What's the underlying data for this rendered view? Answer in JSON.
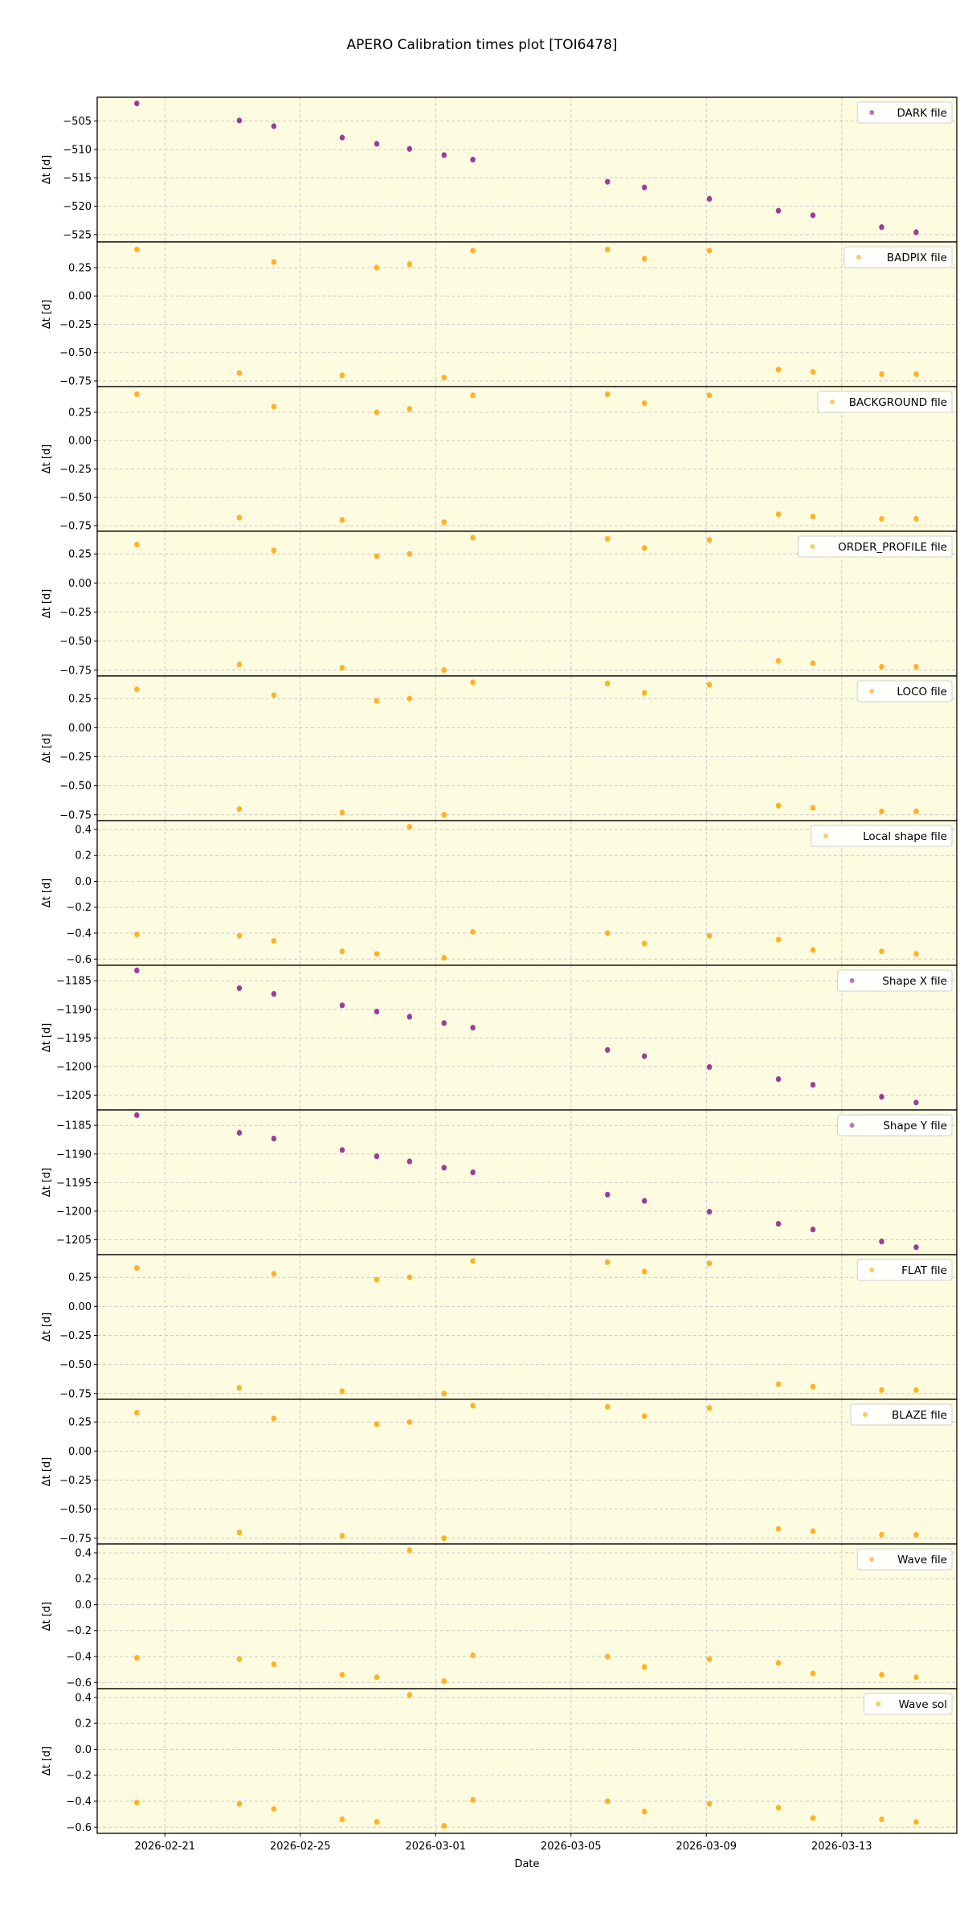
{
  "chart_data": {
    "type": "scatter",
    "title": "APERO Calibration times plot [TOI6478]",
    "xlabel": "Date",
    "ylabel": "Δt [d]",
    "x_tick_labels": [
      "2026-02-21",
      "2026-02-25",
      "2026-03-01",
      "2026-03-05",
      "2026-03-09",
      "2026-03-13"
    ],
    "x_tick_days": [
      0,
      4,
      8,
      12,
      16,
      20
    ],
    "x_reference_date": "2026-02-21",
    "xlim_days": [
      -2.0,
      23.4
    ],
    "grid": true,
    "legend_position": "upper right",
    "colors": {
      "purple": "#8b1a8b",
      "orange": "#ffa500",
      "panel_bg": "#fdfbe0",
      "grid": "#cccccc"
    },
    "x_days": [
      -0.83,
      2.2,
      3.22,
      5.24,
      6.26,
      7.23,
      8.25,
      9.1,
      13.08,
      14.17,
      16.09,
      18.13,
      19.15,
      21.18,
      22.2
    ],
    "panels": [
      {
        "legend": "DARK file",
        "color": "#8b1a8b",
        "ylim": [
          -526.3,
          -500.8
        ],
        "yticks": [
          -505,
          -510,
          -515,
          -520,
          -525
        ],
        "ytick_labels": [
          "−505",
          "−510",
          "−515",
          "−520",
          "−525"
        ],
        "values": [
          -501.9,
          -504.9,
          -505.9,
          -507.9,
          -509.0,
          -509.9,
          -511.0,
          -511.8,
          -515.7,
          -516.7,
          -518.7,
          -520.8,
          -521.6,
          -523.7,
          -524.6
        ]
      },
      {
        "legend": "BADPIX file",
        "color": "#ffa500",
        "ylim": [
          -0.8,
          0.477
        ],
        "yticks": [
          0.25,
          0.0,
          -0.25,
          -0.5,
          -0.75
        ],
        "ytick_labels": [
          "0.25",
          "0.00",
          "−0.25",
          "−0.50",
          "−0.75"
        ],
        "values": [
          0.41,
          -0.68,
          0.3,
          -0.7,
          0.25,
          0.28,
          -0.72,
          0.4,
          0.41,
          0.33,
          0.4,
          -0.65,
          -0.67,
          -0.69,
          -0.69
        ]
      },
      {
        "legend": "BACKGROUND file",
        "color": "#ffa500",
        "ylim": [
          -0.8,
          0.477
        ],
        "yticks": [
          0.25,
          0.0,
          -0.25,
          -0.5,
          -0.75
        ],
        "ytick_labels": [
          "0.25",
          "0.00",
          "−0.25",
          "−0.50",
          "−0.75"
        ],
        "values": [
          0.41,
          -0.68,
          0.3,
          -0.7,
          0.25,
          0.28,
          -0.72,
          0.4,
          0.41,
          0.33,
          0.4,
          -0.65,
          -0.67,
          -0.69,
          -0.69
        ]
      },
      {
        "legend": "ORDER_PROFILE file",
        "color": "#ffa500",
        "ylim": [
          -0.8,
          0.445
        ],
        "yticks": [
          0.25,
          0.0,
          -0.25,
          -0.5,
          -0.75
        ],
        "ytick_labels": [
          "0.25",
          "0.00",
          "−0.25",
          "−0.50",
          "−0.75"
        ],
        "values": [
          0.33,
          -0.7,
          0.28,
          -0.73,
          0.23,
          0.25,
          -0.75,
          0.39,
          0.38,
          0.3,
          0.37,
          -0.67,
          -0.69,
          -0.72,
          -0.72
        ]
      },
      {
        "legend": "LOCO file",
        "color": "#ffa500",
        "ylim": [
          -0.8,
          0.445
        ],
        "yticks": [
          0.25,
          0.0,
          -0.25,
          -0.5,
          -0.75
        ],
        "ytick_labels": [
          "0.25",
          "0.00",
          "−0.25",
          "−0.50",
          "−0.75"
        ],
        "values": [
          0.33,
          -0.7,
          0.28,
          -0.73,
          0.23,
          0.25,
          -0.75,
          0.39,
          0.38,
          0.3,
          0.37,
          -0.67,
          -0.69,
          -0.72,
          -0.72
        ]
      },
      {
        "legend": "Local shape file",
        "color": "#ffa500",
        "ylim": [
          -0.648,
          0.468
        ],
        "yticks": [
          0.4,
          0.2,
          0.0,
          -0.2,
          -0.4,
          -0.6
        ],
        "ytick_labels": [
          "0.4",
          "0.2",
          "0.0",
          "−0.2",
          "−0.4",
          "−0.6"
        ],
        "values": [
          -0.41,
          -0.42,
          -0.46,
          -0.54,
          -0.56,
          0.42,
          -0.59,
          -0.39,
          -0.4,
          -0.48,
          -0.42,
          -0.45,
          -0.53,
          -0.54,
          -0.56
        ]
      },
      {
        "legend": "Shape X file",
        "color": "#8b1a8b",
        "ylim": [
          -1207.6,
          -1182.3
        ],
        "yticks": [
          -1185,
          -1190,
          -1195,
          -1200,
          -1205
        ],
        "ytick_labels": [
          "−1185",
          "−1190",
          "−1195",
          "−1200",
          "−1205"
        ],
        "values": [
          -1183.2,
          -1186.3,
          -1187.3,
          -1189.3,
          -1190.4,
          -1191.3,
          -1192.4,
          -1193.2,
          -1197.1,
          -1198.2,
          -1200.1,
          -1202.2,
          -1203.2,
          -1205.3,
          -1206.3
        ]
      },
      {
        "legend": "Shape Y file",
        "color": "#8b1a8b",
        "ylim": [
          -1207.6,
          -1182.3
        ],
        "yticks": [
          -1185,
          -1190,
          -1195,
          -1200,
          -1205
        ],
        "ytick_labels": [
          "−1185",
          "−1190",
          "−1195",
          "−1200",
          "−1205"
        ],
        "values": [
          -1183.2,
          -1186.3,
          -1187.3,
          -1189.3,
          -1190.4,
          -1191.3,
          -1192.4,
          -1193.2,
          -1197.1,
          -1198.2,
          -1200.1,
          -1202.2,
          -1203.2,
          -1205.3,
          -1206.3
        ]
      },
      {
        "legend": "FLAT file",
        "color": "#ffa500",
        "ylim": [
          -0.8,
          0.445
        ],
        "yticks": [
          0.25,
          0.0,
          -0.25,
          -0.5,
          -0.75
        ],
        "ytick_labels": [
          "0.25",
          "0.00",
          "−0.25",
          "−0.50",
          "−0.75"
        ],
        "values": [
          0.33,
          -0.7,
          0.28,
          -0.73,
          0.23,
          0.25,
          -0.75,
          0.39,
          0.38,
          0.3,
          0.37,
          -0.67,
          -0.69,
          -0.72,
          -0.72
        ]
      },
      {
        "legend": "BLAZE file",
        "color": "#ffa500",
        "ylim": [
          -0.8,
          0.445
        ],
        "yticks": [
          0.25,
          0.0,
          -0.25,
          -0.5,
          -0.75
        ],
        "ytick_labels": [
          "0.25",
          "0.00",
          "−0.25",
          "−0.50",
          "−0.75"
        ],
        "values": [
          0.33,
          -0.7,
          0.28,
          -0.73,
          0.23,
          0.25,
          -0.75,
          0.39,
          0.38,
          0.3,
          0.37,
          -0.67,
          -0.69,
          -0.72,
          -0.72
        ]
      },
      {
        "legend": "Wave file",
        "color": "#ffa500",
        "ylim": [
          -0.648,
          0.468
        ],
        "yticks": [
          0.4,
          0.2,
          0.0,
          -0.2,
          -0.4,
          -0.6
        ],
        "ytick_labels": [
          "0.4",
          "0.2",
          "0.0",
          "−0.2",
          "−0.4",
          "−0.6"
        ],
        "values": [
          -0.41,
          -0.42,
          -0.46,
          -0.54,
          -0.56,
          0.42,
          -0.59,
          -0.39,
          -0.4,
          -0.48,
          -0.42,
          -0.45,
          -0.53,
          -0.54,
          -0.56
        ]
      },
      {
        "legend": "Wave sol",
        "color": "#ffa500",
        "ylim": [
          -0.648,
          0.468
        ],
        "yticks": [
          0.4,
          0.2,
          0.0,
          -0.2,
          -0.4,
          -0.6
        ],
        "ytick_labels": [
          "0.4",
          "0.2",
          "0.0",
          "−0.2",
          "−0.4",
          "−0.6"
        ],
        "values": [
          -0.41,
          -0.42,
          -0.46,
          -0.54,
          -0.56,
          0.42,
          -0.59,
          -0.39,
          -0.4,
          -0.48,
          -0.42,
          -0.45,
          -0.53,
          -0.54,
          -0.56
        ]
      }
    ]
  }
}
